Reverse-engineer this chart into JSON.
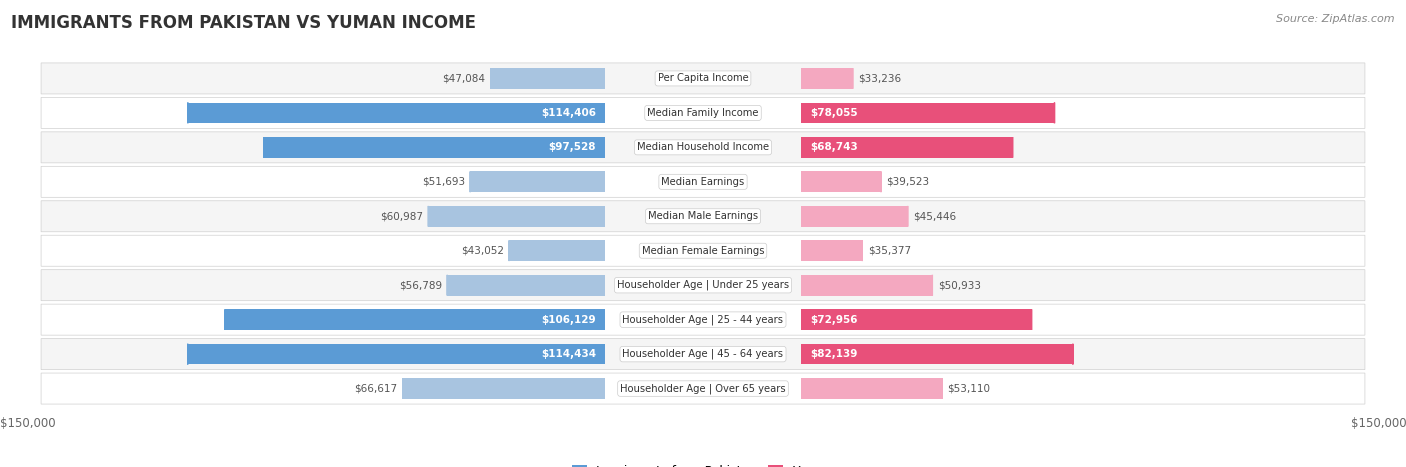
{
  "title": "IMMIGRANTS FROM PAKISTAN VS YUMAN INCOME",
  "source": "Source: ZipAtlas.com",
  "categories": [
    "Per Capita Income",
    "Median Family Income",
    "Median Household Income",
    "Median Earnings",
    "Median Male Earnings",
    "Median Female Earnings",
    "Householder Age | Under 25 years",
    "Householder Age | 25 - 44 years",
    "Householder Age | 45 - 64 years",
    "Householder Age | Over 65 years"
  ],
  "pakistan_values": [
    47084,
    114406,
    97528,
    51693,
    60987,
    43052,
    56789,
    106129,
    114434,
    66617
  ],
  "yuman_values": [
    33236,
    78055,
    68743,
    39523,
    45446,
    35377,
    50933,
    72956,
    82139,
    53110
  ],
  "pak_colors": [
    "#a8c4e0",
    "#5b9bd5",
    "#5b9bd5",
    "#a8c4e0",
    "#a8c4e0",
    "#a8c4e0",
    "#a8c4e0",
    "#5b9bd5",
    "#5b9bd5",
    "#a8c4e0"
  ],
  "yum_colors": [
    "#f4a8c0",
    "#e8507a",
    "#e8507a",
    "#f4a8c0",
    "#f4a8c0",
    "#f4a8c0",
    "#f4a8c0",
    "#e8507a",
    "#e8507a",
    "#f4a8c0"
  ],
  "pak_label_white": [
    false,
    true,
    true,
    false,
    false,
    false,
    false,
    true,
    true,
    false
  ],
  "yum_label_white": [
    false,
    true,
    true,
    false,
    false,
    false,
    false,
    true,
    true,
    false
  ],
  "max_value": 150000,
  "bar_height": 0.6,
  "row_bg_even": "#f5f5f5",
  "row_bg_odd": "#ffffff",
  "row_border": "#d0d0d0",
  "legend_pakistan": "Immigrants from Pakistan",
  "legend_yuman": "Yuman",
  "pak_legend_color": "#5b9bd5",
  "yum_legend_color": "#e8507a"
}
